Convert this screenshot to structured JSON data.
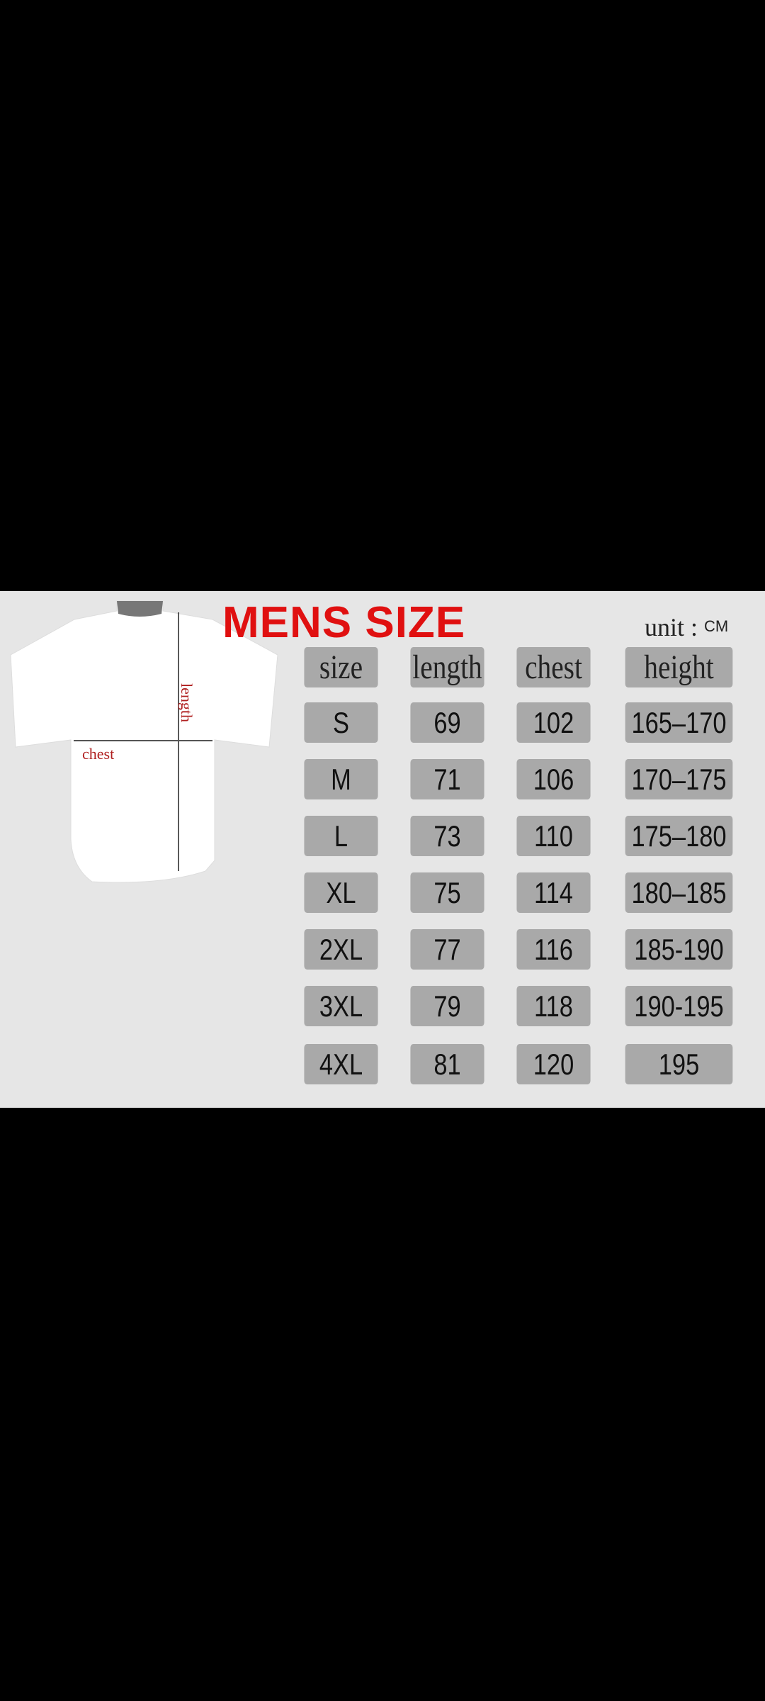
{
  "title": "MENS SIZE",
  "unit_label": "unit :",
  "unit_value": "CM",
  "title_color": "#e01010",
  "diagram": {
    "length_label": "length",
    "chest_label": "chest"
  },
  "headers": [
    "size",
    "length",
    "chest",
    "height"
  ],
  "rows": [
    [
      "S",
      "69",
      "102",
      "165–170"
    ],
    [
      "M",
      "71",
      "106",
      "170–175"
    ],
    [
      "L",
      "73",
      "110",
      "175–180"
    ],
    [
      "XL",
      "75",
      "114",
      "180–185"
    ],
    [
      "2XL",
      "77",
      "116",
      "185-190"
    ],
    [
      "3XL",
      "79",
      "118",
      "190-195"
    ],
    [
      "4XL",
      "81",
      "120",
      "195"
    ]
  ]
}
